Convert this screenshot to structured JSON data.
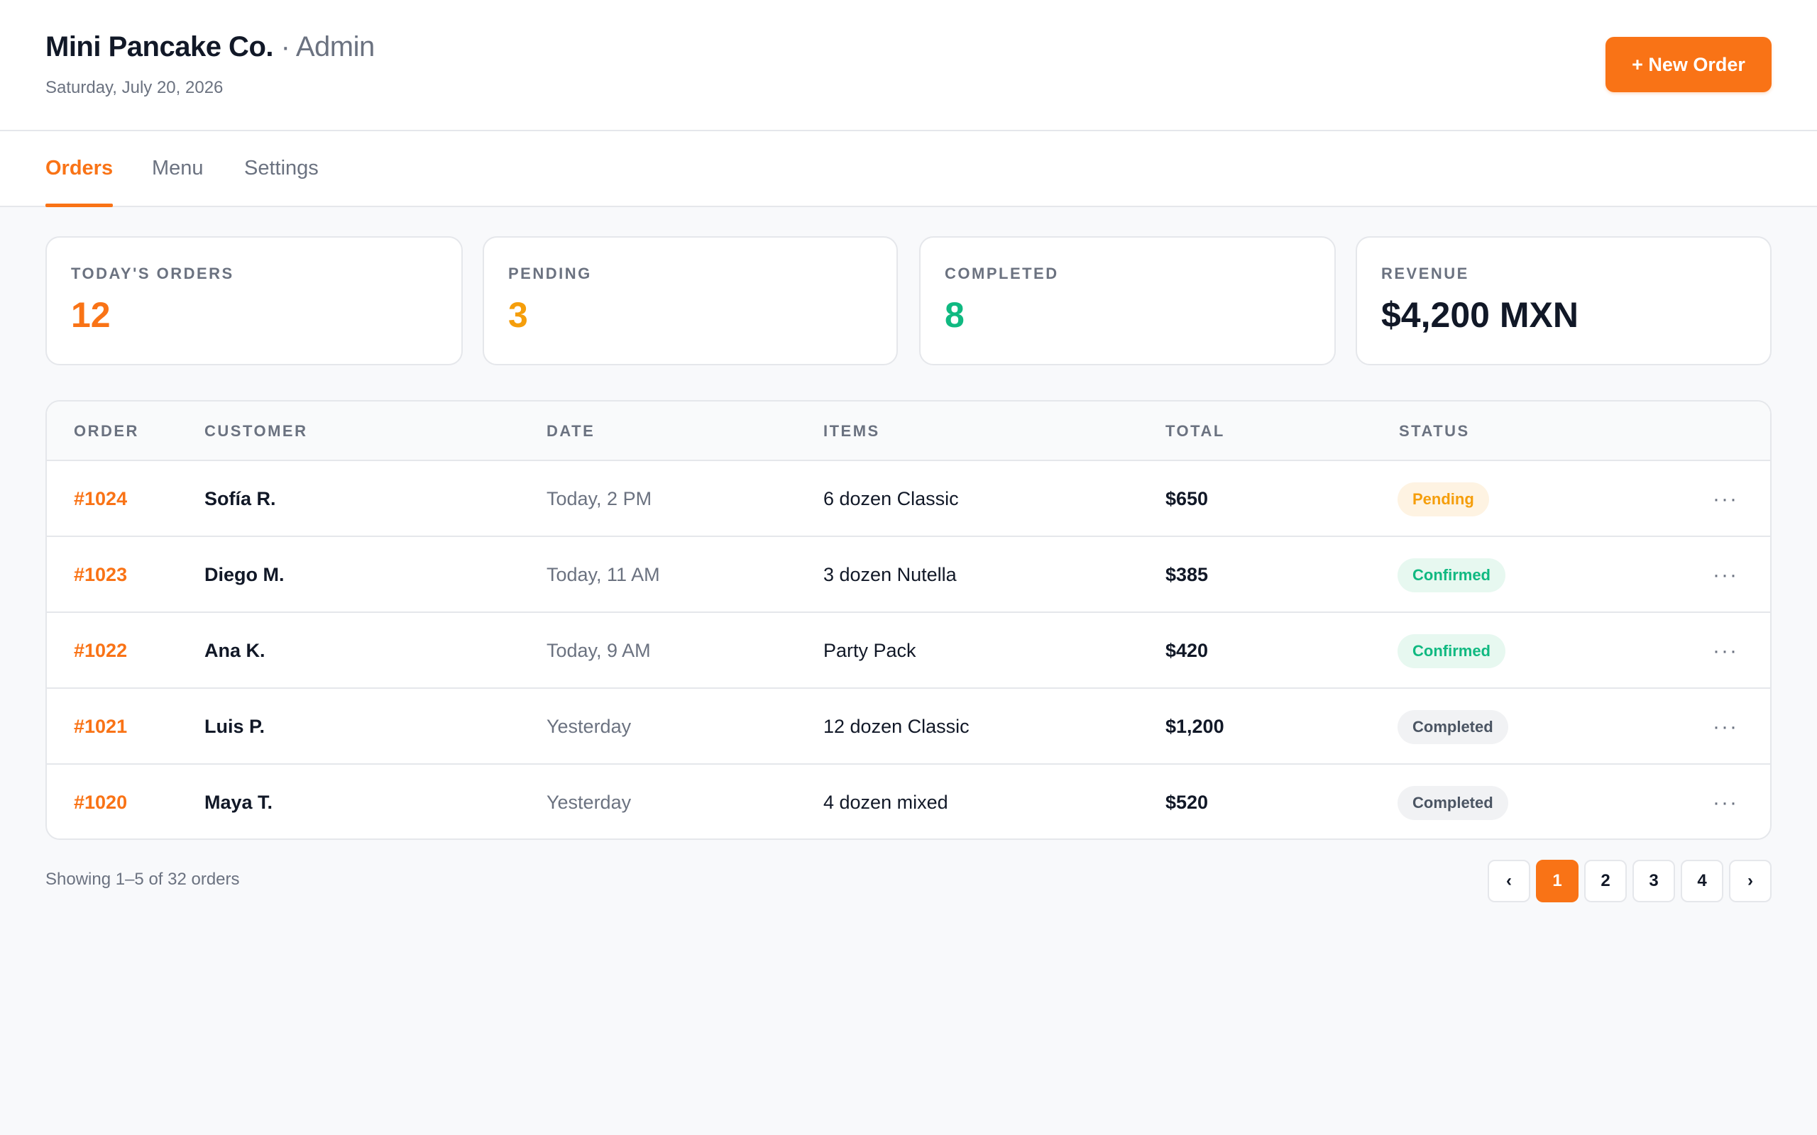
{
  "header": {
    "brand": "Mini Pancake Co.",
    "separator": " · ",
    "role": "Admin",
    "date": "Saturday, July 20, 2026",
    "new_order_label": "+ New Order"
  },
  "tabs": [
    {
      "label": "Orders",
      "active": true
    },
    {
      "label": "Menu",
      "active": false
    },
    {
      "label": "Settings",
      "active": false
    }
  ],
  "stats": [
    {
      "label": "TODAY'S ORDERS",
      "value": "12",
      "color": "#f97316"
    },
    {
      "label": "PENDING",
      "value": "3",
      "color": "#f59e0b"
    },
    {
      "label": "COMPLETED",
      "value": "8",
      "color": "#10b981"
    },
    {
      "label": "REVENUE",
      "value": "$4,200 MXN",
      "color": "#111827"
    }
  ],
  "table": {
    "columns": [
      "ORDER",
      "CUSTOMER",
      "DATE",
      "ITEMS",
      "TOTAL",
      "STATUS"
    ],
    "rows": [
      {
        "order": "#1024",
        "customer": "Sofía R.",
        "date": "Today, 2 PM",
        "items": "6 dozen Classic",
        "total": "$650",
        "status": "Pending"
      },
      {
        "order": "#1023",
        "customer": "Diego M.",
        "date": "Today, 11 AM",
        "items": "3 dozen Nutella",
        "total": "$385",
        "status": "Confirmed"
      },
      {
        "order": "#1022",
        "customer": "Ana K.",
        "date": "Today, 9 AM",
        "items": "Party Pack",
        "total": "$420",
        "status": "Confirmed"
      },
      {
        "order": "#1021",
        "customer": "Luis P.",
        "date": "Yesterday",
        "items": "12 dozen Classic",
        "total": "$1,200",
        "status": "Completed"
      },
      {
        "order": "#1020",
        "customer": "Maya T.",
        "date": "Yesterday",
        "items": "4 dozen mixed",
        "total": "$520",
        "status": "Completed"
      }
    ],
    "more_icon": "more-horizontal-icon",
    "more_glyph": "···"
  },
  "footer": {
    "showing": "Showing 1–5 of 32 orders",
    "pagination": {
      "prev": "‹",
      "pages": [
        "1",
        "2",
        "3",
        "4"
      ],
      "current": "1",
      "next": "›"
    }
  },
  "colors": {
    "accent": "#f97316",
    "pending": "#f59e0b",
    "confirmed": "#10b981",
    "completed": "#4b5563"
  }
}
